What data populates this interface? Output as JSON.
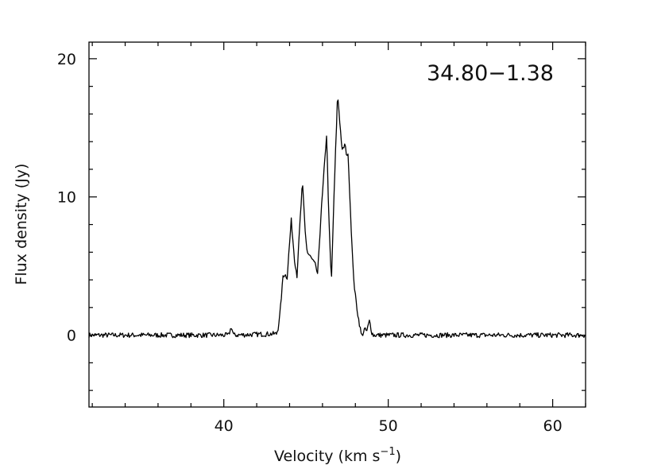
{
  "chart_data": {
    "type": "line",
    "title": "",
    "annotation": "34.80−1.38",
    "xlabel": "Velocity (km s",
    "xlabel_sup": "−1",
    "xlabel_end": ")",
    "ylabel": "Flux density (Jy)",
    "xlim": [
      31.8,
      62.0
    ],
    "ylim": [
      -5.2,
      21.2
    ],
    "x_major_ticks": [
      40,
      50,
      60
    ],
    "x_tick_labels": [
      "40",
      "50",
      "60"
    ],
    "x_minor_step": 2,
    "y_major_ticks": [
      0,
      10,
      20
    ],
    "y_tick_labels": [
      "0",
      "10",
      "20"
    ],
    "y_minor_step": 2,
    "grid": false,
    "baseline_noise_rms": 0.15,
    "series": [
      {
        "name": "spectrum",
        "color": "#000000",
        "x": [
          31.8,
          40.3,
          40.45,
          40.6,
          43.2,
          43.3,
          43.42,
          43.55,
          43.6,
          43.7,
          43.85,
          44.1,
          44.3,
          44.45,
          44.6,
          44.78,
          44.95,
          45.07,
          45.3,
          45.47,
          45.6,
          45.7,
          45.9,
          46.25,
          46.4,
          46.54,
          46.7,
          46.92,
          47.05,
          47.2,
          47.36,
          47.45,
          47.57,
          47.7,
          47.85,
          47.97,
          48.15,
          48.38,
          48.55,
          48.7,
          48.86,
          49.0,
          49.1,
          62.0
        ],
        "y": [
          0,
          0,
          0.6,
          0,
          0.1,
          0.5,
          1.6,
          3.5,
          4.3,
          4.4,
          4.2,
          8.3,
          5.5,
          4.3,
          7.5,
          11.05,
          7.5,
          6.0,
          5.6,
          5.25,
          5.0,
          4.3,
          8.5,
          14.5,
          8.0,
          3.8,
          10.0,
          17.5,
          15.5,
          13.3,
          13.8,
          13.2,
          12.9,
          9.0,
          5.0,
          3.1,
          1.5,
          -0.1,
          0.4,
          0.3,
          1.05,
          0.2,
          0,
          0
        ]
      }
    ]
  }
}
